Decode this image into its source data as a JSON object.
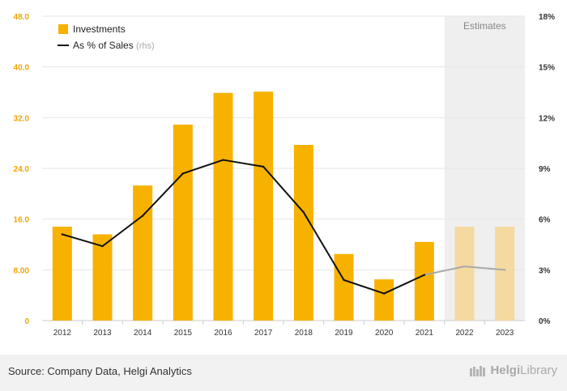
{
  "chart_data": {
    "type": "bar+line",
    "categories": [
      "2012",
      "2013",
      "2014",
      "2015",
      "2016",
      "2017",
      "2018",
      "2019",
      "2020",
      "2021",
      "2022",
      "2023"
    ],
    "estimate_categories": [
      "2022",
      "2023"
    ],
    "series": [
      {
        "name": "Investments",
        "axis": "left",
        "kind": "bar",
        "values": [
          14.8,
          13.6,
          21.3,
          30.9,
          35.9,
          36.1,
          27.7,
          10.5,
          6.5,
          12.4,
          14.8,
          14.8
        ]
      },
      {
        "name": "As % of Sales",
        "name_suffix": "(rhs)",
        "axis": "right",
        "kind": "line",
        "values": [
          5.1,
          4.4,
          6.2,
          8.7,
          9.5,
          9.1,
          6.4,
          2.4,
          1.6,
          2.7,
          3.2,
          3.0
        ]
      }
    ],
    "y_left": {
      "min": 0,
      "max": 48,
      "ticks": [
        "0",
        "8.00",
        "16.0",
        "24.0",
        "32.0",
        "40.0",
        "48.0"
      ]
    },
    "y_right": {
      "min": 0,
      "max": 18,
      "ticks": [
        "0%",
        "3%",
        "6%",
        "9%",
        "12%",
        "15%",
        "18%"
      ]
    },
    "estimates_label": "Estimates"
  },
  "colors": {
    "bar": "#f7b200",
    "bar_estimate": "#f4d9a0",
    "line": "#111111",
    "line_estimate": "#a9a9a9",
    "estimates_bg": "#efefef",
    "grid": "#e6e6e6"
  },
  "footer": {
    "source": "Source: Company Data, Helgi Analytics",
    "logo_part1": "Helgi",
    "logo_part2": "Library"
  }
}
